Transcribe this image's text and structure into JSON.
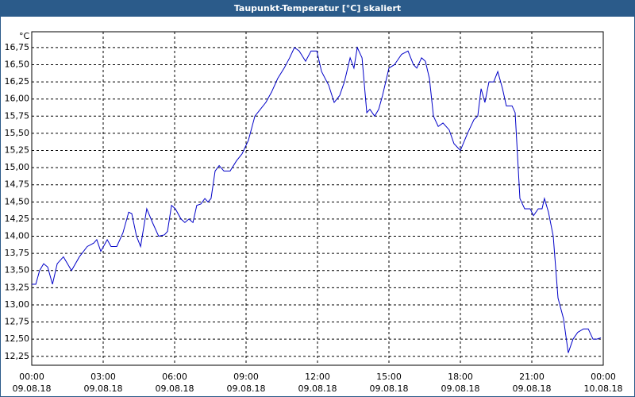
{
  "chart_data": {
    "type": "line",
    "title": "Taupunkt-Temperatur [°C] skaliert",
    "y_unit": "°C",
    "x": [
      0,
      0.17,
      0.33,
      0.5,
      0.67,
      0.87,
      1.07,
      1.33,
      1.67,
      2,
      2.33,
      2.6,
      2.73,
      2.9,
      3.17,
      3.33,
      3.57,
      3.83,
      4.07,
      4.2,
      4.4,
      4.57,
      4.83,
      5.07,
      5.33,
      5.57,
      5.7,
      5.87,
      6.03,
      6.27,
      6.43,
      6.6,
      6.77,
      6.93,
      7.1,
      7.27,
      7.4,
      7.53,
      7.7,
      7.87,
      8.07,
      8.33,
      8.6,
      8.83,
      9.1,
      9.37,
      9.6,
      9.83,
      10.07,
      10.33,
      10.6,
      10.83,
      11.03,
      11.23,
      11.5,
      11.73,
      11.97,
      12.17,
      12.47,
      12.7,
      12.93,
      13.13,
      13.37,
      13.53,
      13.67,
      13.87,
      14.07,
      14.2,
      14.4,
      14.57,
      14.73,
      15,
      15.23,
      15.53,
      15.8,
      16.03,
      16.17,
      16.37,
      16.53,
      16.7,
      16.87,
      17.07,
      17.27,
      17.53,
      17.73,
      18,
      18.3,
      18.57,
      18.73,
      18.87,
      19.03,
      19.2,
      19.4,
      19.57,
      19.77,
      19.93,
      20.17,
      20.3,
      20.5,
      20.7,
      20.93,
      21.07,
      21.27,
      21.43,
      21.53,
      21.7,
      21.9,
      22.1,
      22.33,
      22.53,
      22.73,
      22.93,
      23.17,
      23.37,
      23.57,
      23.73,
      23.9
    ],
    "series": [
      {
        "color": "#0000c8",
        "values": [
          13.3,
          13.3,
          13.5,
          13.6,
          13.55,
          13.3,
          13.6,
          13.7,
          13.5,
          13.7,
          13.85,
          13.9,
          13.95,
          13.78,
          13.95,
          13.85,
          13.85,
          14.05,
          14.35,
          14.33,
          14.0,
          13.85,
          14.4,
          14.2,
          14.0,
          14.02,
          14.07,
          14.45,
          14.4,
          14.25,
          14.2,
          14.25,
          14.2,
          14.45,
          14.47,
          14.55,
          14.5,
          14.55,
          14.95,
          15.03,
          14.95,
          14.95,
          15.1,
          15.2,
          15.4,
          15.75,
          15.85,
          15.95,
          16.1,
          16.3,
          16.45,
          16.6,
          16.75,
          16.7,
          16.55,
          16.7,
          16.7,
          16.4,
          16.2,
          15.95,
          16.05,
          16.25,
          16.6,
          16.45,
          16.75,
          16.6,
          15.8,
          15.85,
          15.75,
          15.85,
          16.05,
          16.45,
          16.5,
          16.65,
          16.7,
          16.5,
          16.45,
          16.6,
          16.55,
          16.3,
          15.75,
          15.6,
          15.65,
          15.55,
          15.35,
          15.25,
          15.5,
          15.7,
          15.75,
          16.15,
          15.95,
          16.25,
          16.25,
          16.4,
          16.15,
          15.9,
          15.9,
          15.8,
          14.55,
          14.4,
          14.4,
          14.3,
          14.4,
          14.4,
          14.55,
          14.35,
          14.0,
          13.1,
          12.8,
          12.3,
          12.5,
          12.6,
          12.65,
          12.65,
          12.5,
          12.5,
          12.52
        ]
      }
    ],
    "xlim": [
      0,
      24
    ],
    "ylim": [
      12.12,
      16.98
    ],
    "xticks": [
      {
        "value": 0,
        "label": "00:00"
      },
      {
        "value": 3,
        "label": "03:00"
      },
      {
        "value": 6,
        "label": "06:00"
      },
      {
        "value": 9,
        "label": "09:00"
      },
      {
        "value": 12,
        "label": "12:00"
      },
      {
        "value": 15,
        "label": "15:00"
      },
      {
        "value": 18,
        "label": "18:00"
      },
      {
        "value": 21,
        "label": "21:00"
      },
      {
        "value": 24,
        "label": "00:00"
      }
    ],
    "xtick_dates": [
      "09.08.18",
      "09.08.18",
      "09.08.18",
      "09.08.18",
      "09.08.18",
      "09.08.18",
      "09.08.18",
      "09.08.18",
      "10.08.18"
    ],
    "yticks": [
      {
        "value": 12.25,
        "label": "12,25"
      },
      {
        "value": 12.5,
        "label": "12,50"
      },
      {
        "value": 12.75,
        "label": "12,75"
      },
      {
        "value": 13,
        "label": "13,00"
      },
      {
        "value": 13.25,
        "label": "13,25"
      },
      {
        "value": 13.5,
        "label": "13,50"
      },
      {
        "value": 13.75,
        "label": "13,75"
      },
      {
        "value": 14,
        "label": "14,00"
      },
      {
        "value": 14.25,
        "label": "14,25"
      },
      {
        "value": 14.5,
        "label": "14,50"
      },
      {
        "value": 14.75,
        "label": "14,75"
      },
      {
        "value": 15,
        "label": "15,00"
      },
      {
        "value": 15.25,
        "label": "15,25"
      },
      {
        "value": 15.5,
        "label": "15,50"
      },
      {
        "value": 15.75,
        "label": "15,75"
      },
      {
        "value": 16,
        "label": "16,00"
      },
      {
        "value": 16.25,
        "label": "16,25"
      },
      {
        "value": 16.5,
        "label": "16,50"
      },
      {
        "value": 16.75,
        "label": "16,75"
      }
    ],
    "grid": true
  }
}
